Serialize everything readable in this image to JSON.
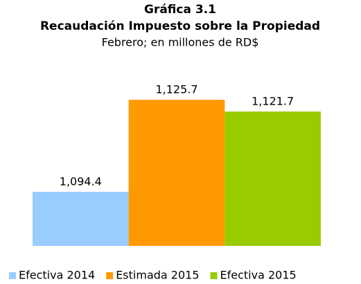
{
  "chart_data": {
    "type": "bar",
    "title": "Gráfica 3.1",
    "subtitle": "Recaudación Impuesto sobre la Propiedad",
    "note": "Febrero; en millones de RD$",
    "categories": [
      null
    ],
    "series": [
      {
        "name": "Efectiva 2014",
        "color": "#99ccff",
        "values": [
          1094.4
        ],
        "value_labels": [
          "1,094.4"
        ]
      },
      {
        "name": "Estimada 2015",
        "color": "#ff9900",
        "values": [
          1125.7
        ],
        "value_labels": [
          "1,125.7"
        ]
      },
      {
        "name": "Efectiva 2015",
        "color": "#99cc00",
        "values": [
          1121.7
        ],
        "value_labels": [
          "1,121.7"
        ]
      }
    ],
    "ylim": [
      1076,
      1129
    ],
    "legend": "bottom"
  }
}
